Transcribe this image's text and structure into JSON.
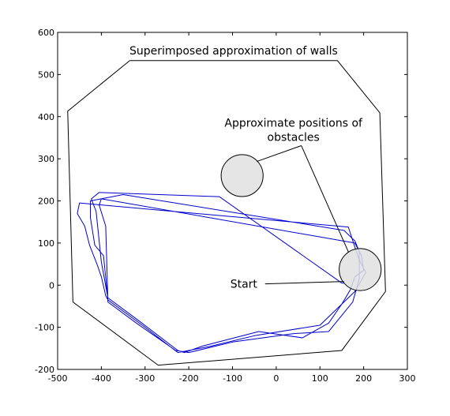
{
  "chart_data": {
    "type": "line",
    "title": "",
    "xlabel": "",
    "ylabel": "",
    "xlim": [
      -500,
      300
    ],
    "ylim": [
      -200,
      600
    ],
    "x_ticks": [
      -500,
      -400,
      -300,
      -200,
      -100,
      0,
      100,
      200,
      300
    ],
    "y_ticks": [
      -200,
      -100,
      0,
      100,
      200,
      300,
      400,
      500,
      600
    ],
    "grid": false,
    "colors": {
      "walls": "#000000",
      "trajectory": "#0000cc",
      "obstacle_fill": "#e0e0e0"
    },
    "walls": {
      "label": "Superimposed approximation of walls",
      "points": [
        [
          -335,
          533
        ],
        [
          140,
          533
        ],
        [
          237,
          409
        ],
        [
          250,
          -15
        ],
        [
          150,
          -155
        ],
        [
          -270,
          -190
        ],
        [
          -465,
          -40
        ],
        [
          -477,
          413
        ],
        [
          -335,
          533
        ]
      ]
    },
    "obstacles": {
      "label": "Approximate positions of obstacles",
      "circles": [
        {
          "cx": -78,
          "cy": 260,
          "r": 48
        },
        {
          "cx": 192,
          "cy": 37,
          "r": 48
        }
      ]
    },
    "start": {
      "label": "Start",
      "x": 155,
      "y": 5
    },
    "series": [
      {
        "values": [
          [
            155,
            5
          ],
          [
            150,
            5
          ],
          [
            -130,
            210
          ],
          [
            -405,
            220
          ],
          [
            -423,
            205
          ],
          [
            -412,
            175
          ],
          [
            -400,
            55
          ],
          [
            -385,
            -30
          ],
          [
            -320,
            -80
          ],
          [
            -225,
            -155
          ],
          [
            -210,
            -160
          ],
          [
            -170,
            -145
          ],
          [
            -40,
            -110
          ],
          [
            60,
            -125
          ],
          [
            120,
            -90
          ],
          [
            150,
            -45
          ],
          [
            170,
            -10
          ],
          [
            180,
            20
          ],
          [
            200,
            35
          ],
          [
            195,
            70
          ],
          [
            180,
            100
          ],
          [
            -400,
            205
          ],
          [
            -405,
            190
          ],
          [
            -390,
            140
          ],
          [
            -385,
            -40
          ],
          [
            -320,
            -90
          ],
          [
            -230,
            -155
          ],
          [
            -200,
            -160
          ],
          [
            -100,
            -135
          ],
          [
            40,
            -115
          ],
          [
            120,
            -110
          ],
          [
            175,
            -40
          ],
          [
            190,
            15
          ],
          [
            190,
            80
          ],
          [
            180,
            105
          ],
          [
            155,
            130
          ],
          [
            -350,
            215
          ],
          [
            -425,
            200
          ],
          [
            -425,
            160
          ],
          [
            -415,
            95
          ],
          [
            -395,
            70
          ],
          [
            -385,
            -35
          ],
          [
            -300,
            -100
          ],
          [
            -225,
            -160
          ],
          [
            -200,
            -155
          ],
          [
            -150,
            -145
          ],
          [
            -50,
            -120
          ],
          [
            100,
            -95
          ],
          [
            180,
            -15
          ],
          [
            205,
            30
          ],
          [
            190,
            60
          ],
          [
            180,
            90
          ],
          [
            165,
            138
          ],
          [
            -450,
            195
          ],
          [
            -455,
            170
          ],
          [
            -438,
            140
          ],
          [
            -427,
            95
          ],
          [
            -410,
            50
          ],
          [
            -400,
            20
          ],
          [
            -390,
            -25
          ],
          [
            -385,
            -35
          ]
        ]
      }
    ]
  }
}
